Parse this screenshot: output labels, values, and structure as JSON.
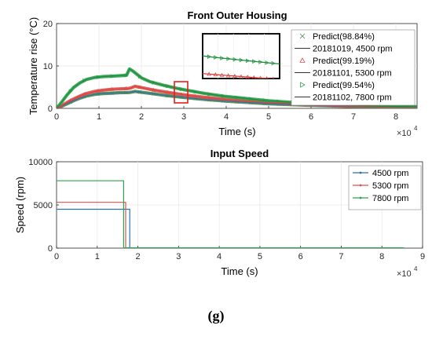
{
  "figure": {
    "caption": "(g)"
  },
  "chart_data": [
    {
      "type": "line",
      "title": "Front Outer Housing",
      "xlabel": "Time (s)",
      "ylabel": "Temperature rise (°C)",
      "x_multiplier_label": "×10",
      "x_multiplier_exp": "4",
      "x_scale": 10000,
      "xlim": [
        0,
        8.5
      ],
      "ylim": [
        0,
        20
      ],
      "xticks": [
        0,
        1,
        2,
        3,
        4,
        5,
        6,
        7,
        8
      ],
      "yticks": [
        0,
        10,
        20
      ],
      "grid": true,
      "legend_position": "top-right",
      "inset": {
        "type": "zoom",
        "xlim": [
          2.75,
          3.05
        ],
        "ylim": [
          3.2,
          6.6
        ]
      },
      "series": [
        {
          "name": "Predict(98.84%)",
          "color": "#4a8a4a",
          "marker": "x",
          "x": [
            0,
            0.1,
            0.25,
            0.4,
            0.55,
            0.7,
            0.9,
            1.1,
            1.3,
            1.5,
            1.7,
            1.75,
            1.85,
            2.0,
            2.3,
            2.6,
            3.0,
            3.5,
            4.0,
            5.0,
            6.0,
            7.0,
            8.0,
            8.5
          ],
          "y": [
            0,
            0.4,
            1.1,
            1.8,
            2.4,
            2.9,
            3.3,
            3.5,
            3.6,
            3.7,
            3.75,
            3.8,
            4.0,
            3.8,
            3.4,
            3.0,
            2.6,
            2.1,
            1.7,
            1.1,
            0.7,
            0.45,
            0.3,
            0.25
          ]
        },
        {
          "name": "20181019, 4500 rpm",
          "color": "#2f6fad",
          "x": [
            0,
            0.1,
            0.25,
            0.4,
            0.55,
            0.7,
            0.9,
            1.1,
            1.3,
            1.5,
            1.7,
            1.75,
            1.85,
            2.0,
            2.3,
            2.6,
            3.0,
            3.5,
            4.0,
            5.0,
            6.0,
            7.0,
            8.0,
            8.5
          ],
          "y": [
            0,
            0.4,
            1.1,
            1.8,
            2.4,
            2.9,
            3.3,
            3.5,
            3.6,
            3.7,
            3.75,
            3.8,
            4.0,
            3.8,
            3.4,
            3.0,
            2.6,
            2.1,
            1.7,
            1.1,
            0.7,
            0.45,
            0.3,
            0.25
          ]
        },
        {
          "name": "Predict(99.19%)",
          "color": "#d9534f",
          "marker": "triangle",
          "x": [
            0,
            0.1,
            0.25,
            0.4,
            0.55,
            0.7,
            0.9,
            1.1,
            1.3,
            1.5,
            1.7,
            1.75,
            1.85,
            2.0,
            2.3,
            2.6,
            3.0,
            3.5,
            4.0,
            5.0,
            6.0,
            7.0,
            8.0,
            8.5
          ],
          "y": [
            0,
            0.5,
            1.4,
            2.2,
            2.9,
            3.5,
            4.0,
            4.3,
            4.5,
            4.6,
            4.7,
            4.8,
            5.2,
            4.9,
            4.3,
            3.8,
            3.2,
            2.6,
            2.1,
            1.35,
            0.85,
            0.55,
            0.35,
            0.3
          ]
        },
        {
          "name": "20181101, 5300 rpm",
          "color": "#e0403c",
          "x": [
            0,
            0.1,
            0.25,
            0.4,
            0.55,
            0.7,
            0.9,
            1.1,
            1.3,
            1.5,
            1.7,
            1.75,
            1.85,
            2.0,
            2.3,
            2.6,
            3.0,
            3.5,
            4.0,
            5.0,
            6.0,
            7.0,
            8.0,
            8.5
          ],
          "y": [
            0,
            0.5,
            1.4,
            2.2,
            2.9,
            3.5,
            4.0,
            4.3,
            4.5,
            4.6,
            4.7,
            4.8,
            5.2,
            4.9,
            4.3,
            3.8,
            3.2,
            2.6,
            2.1,
            1.35,
            0.85,
            0.55,
            0.35,
            0.3
          ]
        },
        {
          "name": "Predict(99.54%)",
          "color": "#2fa24e",
          "marker": "triangle-right",
          "x": [
            0,
            0.1,
            0.25,
            0.4,
            0.55,
            0.7,
            0.9,
            1.1,
            1.3,
            1.5,
            1.65,
            1.72,
            1.8,
            1.9,
            2.0,
            2.2,
            2.5,
            2.8,
            3.0,
            3.5,
            4.0,
            5.0,
            6.0,
            7.0,
            8.0,
            8.5
          ],
          "y": [
            0,
            1.2,
            3.2,
            4.9,
            6.0,
            6.8,
            7.3,
            7.5,
            7.6,
            7.7,
            7.8,
            9.3,
            8.8,
            8.0,
            7.2,
            6.3,
            5.5,
            4.8,
            4.4,
            3.5,
            2.8,
            1.8,
            1.1,
            0.7,
            0.45,
            0.4
          ]
        },
        {
          "name": "20181102, 7800 rpm",
          "color": "#1e8a3c",
          "x": [
            0,
            0.1,
            0.25,
            0.4,
            0.55,
            0.7,
            0.9,
            1.1,
            1.3,
            1.5,
            1.65,
            1.72,
            1.8,
            1.9,
            2.0,
            2.2,
            2.5,
            2.8,
            3.0,
            3.5,
            4.0,
            5.0,
            6.0,
            7.0,
            8.0,
            8.5
          ],
          "y": [
            0,
            1.2,
            3.2,
            4.9,
            6.0,
            6.8,
            7.3,
            7.5,
            7.6,
            7.7,
            7.8,
            9.3,
            8.8,
            8.0,
            7.2,
            6.3,
            5.5,
            4.8,
            4.4,
            3.5,
            2.8,
            1.8,
            1.1,
            0.7,
            0.45,
            0.4
          ]
        }
      ]
    },
    {
      "type": "line",
      "title": "Input Speed",
      "xlabel": "Time (s)",
      "ylabel": "Speed (rpm)",
      "x_multiplier_label": "×10",
      "x_multiplier_exp": "4",
      "x_scale": 10000,
      "xlim": [
        0,
        9
      ],
      "ylim": [
        0,
        10000
      ],
      "xticks": [
        0,
        1,
        2,
        3,
        4,
        5,
        6,
        7,
        8,
        9
      ],
      "yticks": [
        0,
        5000,
        10000
      ],
      "grid": true,
      "legend_position": "top-right",
      "series": [
        {
          "name": "4500 rpm",
          "color": "#2f6fad",
          "x": [
            0,
            1.8,
            1.8,
            8.55
          ],
          "y": [
            4500,
            4500,
            0,
            0
          ]
        },
        {
          "name": "5300 rpm",
          "color": "#d9534f",
          "x": [
            0,
            1.7,
            1.7,
            8.55
          ],
          "y": [
            5300,
            5300,
            0,
            0
          ]
        },
        {
          "name": "7800 rpm",
          "color": "#2fa24e",
          "x": [
            0,
            1.65,
            1.65,
            8.55
          ],
          "y": [
            7800,
            7800,
            0,
            0
          ]
        }
      ]
    }
  ]
}
